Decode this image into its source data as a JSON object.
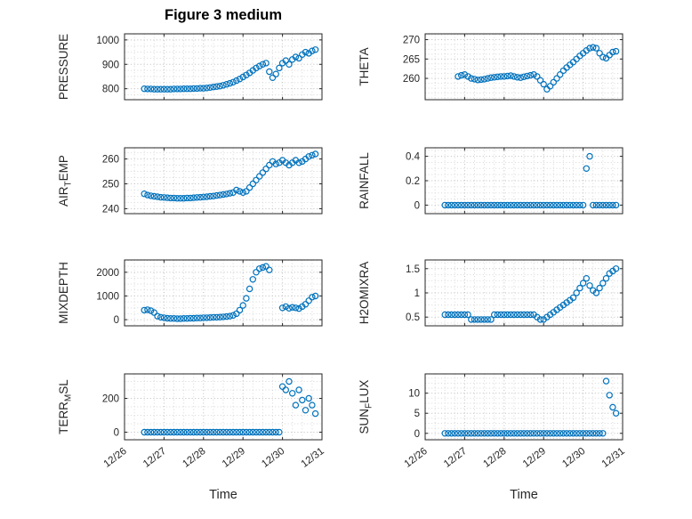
{
  "chart_data": {
    "type": "scatter",
    "layout": "4x2-subplots",
    "title": "Figure 3 medium",
    "xlabel": "Time",
    "x_unit": "days since 12/26",
    "xlim": [
      0,
      5
    ],
    "xticks": [
      0,
      1,
      2,
      3,
      4,
      5
    ],
    "xtick_labels": [
      "12/26",
      "12/27",
      "12/28",
      "12/29",
      "12/30",
      "12/31"
    ],
    "marker": {
      "shape": "open-circle",
      "color": "#0072BD"
    },
    "grid": "dotted-major-minor",
    "x": [
      0.5,
      0.583,
      0.667,
      0.75,
      0.833,
      0.917,
      1,
      1.083,
      1.167,
      1.25,
      1.333,
      1.417,
      1.5,
      1.583,
      1.667,
      1.75,
      1.833,
      1.917,
      2,
      2.083,
      2.167,
      2.25,
      2.333,
      2.417,
      2.5,
      2.583,
      2.667,
      2.75,
      2.833,
      2.917,
      3,
      3.083,
      3.167,
      3.25,
      3.333,
      3.417,
      3.5,
      3.583,
      3.667,
      3.75,
      3.833,
      3.917,
      4,
      4.083,
      4.167,
      4.25,
      4.333,
      4.417,
      4.5,
      4.583,
      4.667,
      4.75,
      4.833
    ],
    "subplots": [
      {
        "name": "PRESSURE",
        "ylabel_segments": [
          {
            "text": "PRESSURE",
            "sub": false
          }
        ],
        "yticks": [
          800,
          900,
          1000
        ],
        "ytick_labels": [
          "800",
          "900",
          "1000"
        ],
        "ylim": [
          755,
          1025
        ],
        "values": [
          800,
          799,
          799,
          798,
          798,
          798,
          798,
          798,
          798,
          799,
          799,
          799,
          800,
          800,
          800,
          801,
          801,
          802,
          802,
          803,
          805,
          807,
          809,
          811,
          814,
          818,
          822,
          827,
          833,
          840,
          848,
          856,
          865,
          875,
          885,
          893,
          900,
          905,
          870,
          845,
          860,
          885,
          905,
          915,
          900,
          920,
          930,
          925,
          940,
          950,
          945,
          955,
          960
        ]
      },
      {
        "name": "THETA",
        "ylabel_segments": [
          {
            "text": "THETA",
            "sub": false
          }
        ],
        "yticks": [
          260,
          265,
          270
        ],
        "ytick_labels": [
          "260",
          "265",
          "270"
        ],
        "ylim": [
          254.5,
          271.5
        ],
        "values": [
          null,
          null,
          null,
          null,
          260.5,
          260.8,
          261,
          260.5,
          260,
          259.8,
          259.6,
          259.7,
          259.8,
          260,
          260.2,
          260.3,
          260.4,
          260.5,
          260.5,
          260.6,
          260.7,
          260.5,
          260.3,
          260.2,
          260.4,
          260.6,
          260.8,
          261,
          260.5,
          259.5,
          258.5,
          257.2,
          258,
          259,
          260,
          261,
          262,
          262.8,
          263.5,
          264.2,
          265,
          265.8,
          266.5,
          267.2,
          267.8,
          268,
          267.8,
          266.5,
          265.5,
          265.2,
          266,
          266.8,
          267
        ]
      },
      {
        "name": "AIR_TEMP",
        "ylabel_segments": [
          {
            "text": "AIR",
            "sub": false
          },
          {
            "text": "T",
            "sub": true
          },
          {
            "text": "EMP",
            "sub": false
          }
        ],
        "yticks": [
          240,
          250,
          260
        ],
        "ytick_labels": [
          "240",
          "250",
          "260"
        ],
        "ylim": [
          238,
          264.5
        ],
        "values": [
          246,
          245.5,
          245.2,
          245,
          244.8,
          244.6,
          244.5,
          244.4,
          244.3,
          244.3,
          244.2,
          244.2,
          244.2,
          244.3,
          244.3,
          244.4,
          244.5,
          244.6,
          244.7,
          244.8,
          245,
          245.1,
          245.3,
          245.5,
          245.7,
          245.9,
          246.2,
          246.5,
          247.5,
          247,
          246.5,
          247,
          248.5,
          250,
          251.5,
          253,
          254.5,
          256,
          257.5,
          259,
          258,
          258.5,
          259.5,
          258.5,
          257.5,
          258.5,
          259.5,
          258.5,
          259,
          260,
          261,
          261.5,
          262
        ]
      },
      {
        "name": "RAINFALL",
        "ylabel_segments": [
          {
            "text": "RAINFALL",
            "sub": false
          }
        ],
        "yticks": [
          0,
          0.2,
          0.4
        ],
        "ytick_labels": [
          "0",
          "0.2",
          "0.4"
        ],
        "ylim": [
          -0.07,
          0.47
        ],
        "values": [
          0,
          0,
          0,
          0,
          0,
          0,
          0,
          0,
          0,
          0,
          0,
          0,
          0,
          0,
          0,
          0,
          0,
          0,
          0,
          0,
          0,
          0,
          0,
          0,
          0,
          0,
          0,
          0,
          0,
          0,
          0,
          0,
          0,
          0,
          0,
          0,
          0,
          0,
          0,
          0,
          0,
          0,
          0,
          0.3,
          0.4,
          0,
          0,
          0,
          0,
          0,
          0,
          0,
          0
        ]
      },
      {
        "name": "MIXDEPTH",
        "ylabel_segments": [
          {
            "text": "MIXDEPTH",
            "sub": false
          }
        ],
        "yticks": [
          0,
          1000,
          2000
        ],
        "ytick_labels": [
          "0",
          "1000",
          "2000"
        ],
        "ylim": [
          -260,
          2520
        ],
        "values": [
          400,
          420,
          380,
          300,
          150,
          100,
          80,
          60,
          50,
          50,
          40,
          40,
          50,
          50,
          60,
          60,
          70,
          70,
          80,
          80,
          90,
          100,
          100,
          110,
          120,
          130,
          150,
          180,
          250,
          400,
          600,
          900,
          1300,
          1700,
          2000,
          2150,
          2200,
          2250,
          2100,
          null,
          null,
          null,
          500,
          550,
          480,
          520,
          500,
          470,
          550,
          650,
          800,
          950,
          1000
        ]
      },
      {
        "name": "H2OMIXRA",
        "ylabel_segments": [
          {
            "text": "H2OMIXRA",
            "sub": false
          }
        ],
        "yticks": [
          0.5,
          1,
          1.5
        ],
        "ytick_labels": [
          "0.5",
          "1",
          "1.5"
        ],
        "ylim": [
          0.32,
          1.68
        ],
        "values": [
          0.55,
          0.55,
          0.55,
          0.55,
          0.55,
          0.55,
          0.55,
          0.55,
          0.45,
          0.45,
          0.45,
          0.45,
          0.45,
          0.45,
          0.45,
          0.55,
          0.55,
          0.55,
          0.55,
          0.55,
          0.55,
          0.55,
          0.55,
          0.55,
          0.55,
          0.55,
          0.55,
          0.55,
          0.5,
          0.45,
          0.45,
          0.5,
          0.55,
          0.6,
          0.65,
          0.7,
          0.75,
          0.8,
          0.85,
          0.9,
          1,
          1.1,
          1.2,
          1.3,
          1.15,
          1.05,
          1,
          1.1,
          1.2,
          1.3,
          1.4,
          1.45,
          1.5
        ]
      },
      {
        "name": "TERR_MSL",
        "ylabel_segments": [
          {
            "text": "TERR",
            "sub": false
          },
          {
            "text": "M",
            "sub": true
          },
          {
            "text": "SL",
            "sub": false
          }
        ],
        "yticks": [
          0,
          200
        ],
        "ytick_labels": [
          "0",
          "200"
        ],
        "ylim": [
          -45,
          345
        ],
        "values": [
          0,
          0,
          0,
          0,
          0,
          0,
          0,
          0,
          0,
          0,
          0,
          0,
          0,
          0,
          0,
          0,
          0,
          0,
          0,
          0,
          0,
          0,
          0,
          0,
          0,
          0,
          0,
          0,
          0,
          0,
          0,
          0,
          0,
          0,
          0,
          0,
          0,
          0,
          0,
          0,
          0,
          0,
          270,
          250,
          300,
          230,
          160,
          250,
          190,
          130,
          200,
          160,
          110
        ]
      },
      {
        "name": "SUN_FLUX",
        "ylabel_segments": [
          {
            "text": "SUN",
            "sub": false
          },
          {
            "text": "F",
            "sub": true
          },
          {
            "text": "LUX",
            "sub": false
          }
        ],
        "yticks": [
          0,
          5,
          10
        ],
        "ytick_labels": [
          "0",
          "5",
          "10"
        ],
        "ylim": [
          -1.6,
          14.8
        ],
        "values": [
          0,
          0,
          0,
          0,
          0,
          0,
          0,
          0,
          0,
          0,
          0,
          0,
          0,
          0,
          0,
          0,
          0,
          0,
          0,
          0,
          0,
          0,
          0,
          0,
          0,
          0,
          0,
          0,
          0,
          0,
          0,
          0,
          0,
          0,
          0,
          0,
          0,
          0,
          0,
          0,
          0,
          0,
          0,
          0,
          0,
          0,
          0,
          0,
          0,
          13,
          9.5,
          6.5,
          5
        ]
      }
    ]
  }
}
